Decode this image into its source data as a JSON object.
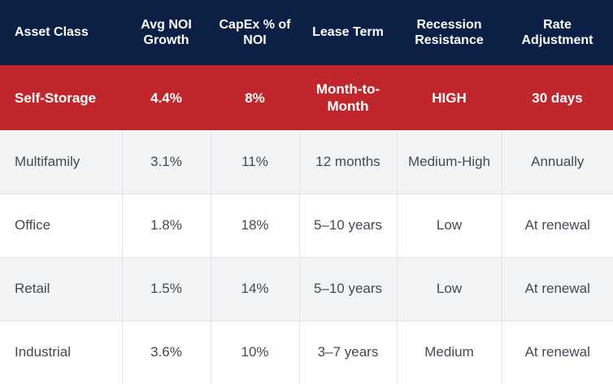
{
  "table": {
    "headers": [
      "Asset Class",
      "Avg NOI Growth",
      "CapEx % of NOI",
      "Lease Term",
      "Recession Resistance",
      "Rate Adjustment"
    ],
    "highlight_row": [
      "Self-Storage",
      "4.4%",
      "8%",
      "Month-to-Month",
      "HIGH",
      "30 days"
    ],
    "rows": [
      [
        "Multifamily",
        "3.1%",
        "11%",
        "12 months",
        "Medium-High",
        "Annually"
      ],
      [
        "Office",
        "1.8%",
        "18%",
        "5–10 years",
        "Low",
        "At renewal"
      ],
      [
        "Retail",
        "1.5%",
        "14%",
        "5–10 years",
        "Low",
        "At renewal"
      ],
      [
        "Industrial",
        "3.6%",
        "10%",
        "3–7 years",
        "Medium",
        "At renewal"
      ]
    ]
  },
  "colors": {
    "header_bg": "#0c1f45",
    "highlight_bg": "#c0272d",
    "shaded_row_bg": "#f2f3f5",
    "text": "#444a55"
  }
}
